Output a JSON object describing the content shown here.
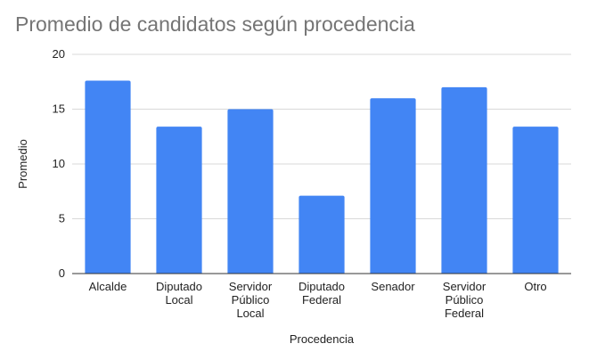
{
  "chart_data": {
    "type": "bar",
    "title": "Promedio de candidatos según procedencia",
    "xlabel": "Procedencia",
    "ylabel": "Promedio",
    "categories": [
      [
        "Alcalde"
      ],
      [
        "Diputado",
        "Local"
      ],
      [
        "Servidor",
        "Público",
        "Local"
      ],
      [
        "Diputado",
        "Federal"
      ],
      [
        "Senador"
      ],
      [
        "Servidor",
        "Público",
        "Federal"
      ],
      [
        "Otro"
      ]
    ],
    "values": [
      17.6,
      13.4,
      15.0,
      7.1,
      16.0,
      17.0,
      13.4
    ],
    "ylim": [
      0,
      20
    ],
    "yticks": [
      "0",
      "5",
      "10",
      "15",
      "20"
    ],
    "grid": true,
    "legend": "none",
    "colors": {
      "bar": "#4285f4",
      "grid": "#d9d9d9",
      "baseline": "#333333"
    }
  }
}
